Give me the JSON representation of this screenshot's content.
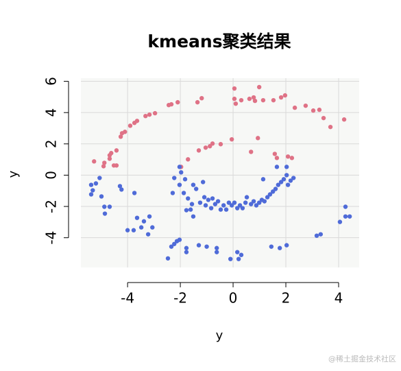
{
  "chart_data": {
    "type": "scatter",
    "title": "kmeans聚类结果",
    "xlabel": "y",
    "ylabel": "y",
    "xlim": [
      -5.77,
      4.78
    ],
    "ylim": [
      -5.9,
      6.2
    ],
    "xticks": [
      -4,
      -2,
      0,
      2,
      4
    ],
    "yticks": [
      -4,
      -2,
      0,
      2,
      4,
      6
    ],
    "grid": true,
    "series": [
      {
        "color": "#df7286",
        "x": [
          -5.27,
          -4.91,
          -4.88,
          -4.68,
          -4.68,
          -4.62,
          -4.42,
          -4.52,
          -4.42,
          -4.26,
          -4.21,
          -4.1,
          -3.9,
          -3.74,
          -3.64,
          -3.32,
          -3.17,
          -2.96,
          -2.44,
          -2.34,
          -2.1,
          -1.35,
          -1.19,
          0.05,
          0.05,
          0.1,
          0.31,
          0.62,
          0.99,
          0.78,
          0.83,
          1.14,
          1.53,
          1.82,
          1.97,
          2.34,
          2.75,
          3.04,
          3.27,
          3.43,
          3.69,
          4.21,
          -1.97,
          -1.71,
          -1.3,
          -1.04,
          -0.88,
          -0.78,
          -0.47,
          -0.05,
          0.68,
          0.94,
          1.58,
          1.66,
          2.08,
          2.23
        ],
        "values": [
          0.88,
          0.57,
          0.79,
          1.05,
          1.27,
          1.41,
          1.58,
          0.62,
          0.62,
          2.46,
          2.68,
          2.77,
          3.16,
          3.34,
          3.47,
          3.78,
          3.87,
          3.96,
          4.48,
          4.53,
          4.66,
          4.66,
          4.92,
          5.54,
          4.88,
          4.57,
          4.79,
          4.88,
          5.63,
          4.97,
          4.75,
          4.79,
          4.79,
          4.97,
          5.1,
          4.31,
          4.44,
          4.13,
          4.18,
          3.65,
          3.08,
          3.56,
          0.53,
          1.01,
          1.58,
          1.76,
          1.85,
          2.02,
          1.98,
          2.29,
          1.49,
          2.37,
          1.36,
          1.1,
          1.19,
          1.1
        ]
      },
      {
        "color": "#4f6bd8",
        "x": [
          -5.38,
          -5.32,
          -5.38,
          -5.2,
          -5.06,
          -4.99,
          -4.88,
          -4.68,
          -4.86,
          -4.29,
          -4.23,
          -3.74,
          -4.0,
          -3.77,
          -3.64,
          -3.48,
          -3.38,
          -3.17,
          -3.22,
          -3.06,
          -2.47,
          -2.34,
          -2.23,
          -2.13,
          -2.03,
          -2.29,
          -2.23,
          -2.03,
          -1.97,
          -2.03,
          -1.82,
          -1.87,
          -1.71,
          -1.77,
          -1.56,
          -1.61,
          -1.51,
          -1.77,
          -1.77,
          -1.51,
          -1.4,
          -1.25,
          -1.09,
          -1.14,
          -1.04,
          -0.94,
          -0.78,
          -0.68,
          -0.57,
          -0.47,
          -0.36,
          -0.26,
          -0.16,
          -0.05,
          0.05,
          0.16,
          0.26,
          0.36,
          0.47,
          0.52,
          0.68,
          0.78,
          0.88,
          0.99,
          1.09,
          1.19,
          1.3,
          1.4,
          1.51,
          1.61,
          1.71,
          1.82,
          1.92,
          2.03,
          2.08,
          2.18,
          2.29,
          1.66,
          2.03,
          -0.83,
          -1.0,
          -0.62,
          -0.62,
          -1.3,
          -0.1,
          0.16,
          0.21,
          0.31,
          1.45,
          1.77,
          2.03,
          3.17,
          3.32,
          4.05,
          4.26,
          4.42,
          4.26,
          1.14
        ],
        "values": [
          -0.62,
          -0.97,
          -1.23,
          -0.53,
          -0.18,
          -1.36,
          -2.02,
          -2.02,
          -2.46,
          -0.7,
          -0.92,
          -1.14,
          -3.52,
          -3.52,
          -2.73,
          -3.34,
          -2.95,
          -2.64,
          -3.78,
          -3.34,
          -5.32,
          -4.57,
          -4.4,
          -4.22,
          -4.13,
          -1.14,
          -0.18,
          0.53,
          0.18,
          -0.62,
          -0.26,
          -1.14,
          -1.49,
          -2.24,
          -1.85,
          -2.2,
          -2.64,
          -4.66,
          -4.92,
          -0.62,
          -0.88,
          -1.76,
          -1.41,
          -0.44,
          -1.93,
          -1.58,
          -1.49,
          -1.85,
          -1.67,
          -2.2,
          -1.93,
          -2.2,
          -1.76,
          -1.93,
          -1.76,
          -2.11,
          -1.93,
          -2.11,
          -1.76,
          -1.41,
          -1.85,
          -1.67,
          -1.93,
          -1.76,
          -1.58,
          -1.67,
          -1.41,
          -1.23,
          -1.05,
          -0.88,
          -0.62,
          -0.44,
          -0.26,
          0,
          -0.62,
          -0.35,
          -0.18,
          0.53,
          0.53,
          -2.11,
          -4.57,
          -4.66,
          -4.92,
          -4.48,
          -5.36,
          -4.92,
          -5.36,
          -5.1,
          -4.57,
          -4.66,
          -4.48,
          -3.87,
          -3.78,
          -2.99,
          -2.64,
          -2.64,
          -2.02,
          -0.26
        ]
      }
    ]
  },
  "watermark": "@稀土掘金技术社区"
}
